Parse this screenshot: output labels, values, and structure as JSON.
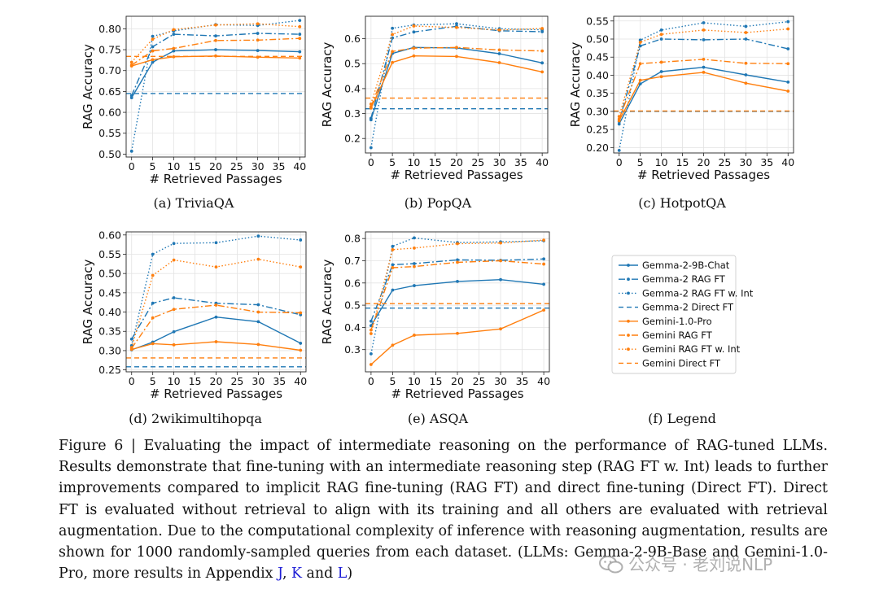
{
  "colors": {
    "blue": "#1f77b4",
    "orange": "#ff7f0e",
    "link": "#1f1fd6"
  },
  "chart_data": [
    {
      "type": "line",
      "title": "TriviaQA",
      "caption": "(a)  TriviaQA",
      "xlabel": "# Retrieved Passages",
      "ylabel": "RAG Accuracy",
      "x": [
        0,
        5,
        10,
        20,
        30,
        40
      ],
      "xticks": [
        0,
        5,
        10,
        15,
        20,
        25,
        30,
        35,
        40
      ],
      "xlim": [
        -1.3,
        41.3
      ],
      "ylim": [
        0.493,
        0.83
      ],
      "yticks": [
        "0.50",
        "0.55",
        "0.60",
        "0.65",
        "0.70",
        "0.75",
        "0.80"
      ],
      "series": [
        {
          "name": "Gemma-2-9B-Chat",
          "values": [
            0.635,
            0.72,
            0.747,
            0.75,
            0.748,
            0.745
          ]
        },
        {
          "name": "Gemma-2 RAG FT",
          "values": [
            0.64,
            0.757,
            0.787,
            0.783,
            0.789,
            0.787
          ]
        },
        {
          "name": "Gemma-2 RAG FT w. Int",
          "values": [
            0.507,
            0.782,
            0.795,
            0.81,
            0.808,
            0.82
          ]
        },
        {
          "name": "Gemma-2 Direct FT",
          "value": 0.645
        },
        {
          "name": "Gemini-1.0-Pro",
          "values": [
            0.711,
            0.726,
            0.733,
            0.735,
            0.732,
            0.73
          ]
        },
        {
          "name": "Gemini RAG FT",
          "values": [
            0.713,
            0.747,
            0.753,
            0.772,
            0.773,
            0.777
          ]
        },
        {
          "name": "Gemini RAG FT w. Int",
          "values": [
            0.72,
            0.775,
            0.798,
            0.809,
            0.812,
            0.805
          ]
        },
        {
          "name": "Gemini Direct FT",
          "value": 0.734
        }
      ]
    },
    {
      "type": "line",
      "title": "PopQA",
      "caption": "(b)  PopQA",
      "xlabel": "# Retrieved Passages",
      "ylabel": "RAG Accuracy",
      "x": [
        0,
        5,
        10,
        20,
        30,
        40
      ],
      "xticks": [
        0,
        5,
        10,
        15,
        20,
        25,
        30,
        35,
        40
      ],
      "xlim": [
        -1.3,
        41.3
      ],
      "ylim": [
        0.142,
        0.69
      ],
      "yticks": [
        "0.2",
        "0.3",
        "0.4",
        "0.5",
        "0.6"
      ],
      "series": [
        {
          "name": "Gemma-2-9B-Chat",
          "values": [
            0.275,
            0.541,
            0.565,
            0.563,
            0.54,
            0.503
          ]
        },
        {
          "name": "Gemma-2 RAG FT",
          "values": [
            0.281,
            0.603,
            0.627,
            0.65,
            0.632,
            0.628
          ]
        },
        {
          "name": "Gemma-2 RAG FT w. Int",
          "values": [
            0.163,
            0.642,
            0.655,
            0.66,
            0.64,
            0.636
          ]
        },
        {
          "name": "Gemma-2 Direct FT",
          "value": 0.319
        },
        {
          "name": "Gemini-1.0-Pro",
          "values": [
            0.322,
            0.505,
            0.531,
            0.529,
            0.504,
            0.467
          ]
        },
        {
          "name": "Gemini RAG FT",
          "values": [
            0.327,
            0.549,
            0.562,
            0.565,
            0.555,
            0.551
          ]
        },
        {
          "name": "Gemini RAG FT w. Int",
          "values": [
            0.338,
            0.617,
            0.651,
            0.645,
            0.635,
            0.641
          ]
        },
        {
          "name": "Gemini Direct FT",
          "value": 0.362
        }
      ]
    },
    {
      "type": "line",
      "title": "HotpotQA",
      "caption": "(c)  HotpotQA",
      "xlabel": "# Retrieved Passages",
      "ylabel": "RAG Accuracy",
      "x": [
        0,
        5,
        10,
        20,
        30,
        40
      ],
      "xticks": [
        0,
        5,
        10,
        15,
        20,
        25,
        30,
        35,
        40
      ],
      "xlim": [
        -1.3,
        41.3
      ],
      "ylim": [
        0.185,
        0.563
      ],
      "yticks": [
        "0.20",
        "0.25",
        "0.30",
        "0.35",
        "0.40",
        "0.45",
        "0.50",
        "0.55"
      ],
      "series": [
        {
          "name": "Gemma-2-9B-Chat",
          "values": [
            0.265,
            0.376,
            0.41,
            0.422,
            0.401,
            0.381
          ]
        },
        {
          "name": "Gemma-2 RAG FT",
          "values": [
            0.272,
            0.481,
            0.5,
            0.498,
            0.5,
            0.473
          ]
        },
        {
          "name": "Gemma-2 RAG FT w. Int",
          "values": [
            0.192,
            0.497,
            0.525,
            0.545,
            0.535,
            0.548
          ]
        },
        {
          "name": "Gemma-2 Direct FT",
          "value": 0.3
        },
        {
          "name": "Gemini-1.0-Pro",
          "values": [
            0.274,
            0.386,
            0.396,
            0.408,
            0.378,
            0.356
          ]
        },
        {
          "name": "Gemini RAG FT",
          "values": [
            0.279,
            0.432,
            0.436,
            0.444,
            0.433,
            0.432
          ]
        },
        {
          "name": "Gemini RAG FT w. Int",
          "values": [
            0.286,
            0.491,
            0.513,
            0.525,
            0.518,
            0.528
          ]
        },
        {
          "name": "Gemini Direct FT",
          "value": 0.301
        }
      ]
    },
    {
      "type": "line",
      "title": "2wikimultihopqa",
      "caption": "(d)  2wikimultihopqa",
      "xlabel": "# Retrieved Passages",
      "ylabel": "RAG Accuracy",
      "x": [
        0,
        5,
        10,
        20,
        30,
        40
      ],
      "xticks": [
        0,
        5,
        10,
        15,
        20,
        25,
        30,
        35,
        40
      ],
      "xlim": [
        -1.3,
        41.3
      ],
      "ylim": [
        0.245,
        0.608
      ],
      "yticks": [
        "0.25",
        "0.30",
        "0.35",
        "0.40",
        "0.45",
        "0.50",
        "0.55",
        "0.60"
      ],
      "series": [
        {
          "name": "Gemma-2-9B-Chat",
          "values": [
            0.302,
            0.322,
            0.349,
            0.387,
            0.375,
            0.319
          ]
        },
        {
          "name": "Gemma-2 RAG FT",
          "values": [
            0.33,
            0.423,
            0.437,
            0.423,
            0.419,
            0.393
          ]
        },
        {
          "name": "Gemma-2 RAG FT w. Int",
          "values": [
            0.313,
            0.55,
            0.578,
            0.58,
            0.597,
            0.587
          ]
        },
        {
          "name": "Gemma-2 Direct FT",
          "value": 0.258
        },
        {
          "name": "Gemini-1.0-Pro",
          "values": [
            0.303,
            0.318,
            0.315,
            0.323,
            0.316,
            0.301
          ]
        },
        {
          "name": "Gemini RAG FT",
          "values": [
            0.306,
            0.385,
            0.407,
            0.418,
            0.4,
            0.398
          ]
        },
        {
          "name": "Gemini RAG FT w. Int",
          "values": [
            0.308,
            0.495,
            0.535,
            0.517,
            0.537,
            0.517
          ]
        },
        {
          "name": "Gemini Direct FT",
          "value": 0.281
        }
      ]
    },
    {
      "type": "line",
      "title": "ASQA",
      "caption": "(e)  ASQA",
      "xlabel": "# Retrieved Passages",
      "ylabel": "RAG Accuracy",
      "x": [
        0,
        5,
        10,
        20,
        30,
        40
      ],
      "xticks": [
        0,
        5,
        10,
        15,
        20,
        25,
        30,
        35,
        40
      ],
      "xlim": [
        -1.3,
        41.3
      ],
      "ylim": [
        0.2,
        0.83
      ],
      "yticks": [
        "0.3",
        "0.4",
        "0.5",
        "0.6",
        "0.7",
        "0.8"
      ],
      "series": [
        {
          "name": "Gemma-2-9B-Chat",
          "values": [
            0.408,
            0.568,
            0.588,
            0.607,
            0.615,
            0.594
          ]
        },
        {
          "name": "Gemma-2 RAG FT",
          "values": [
            0.428,
            0.682,
            0.687,
            0.704,
            0.702,
            0.708
          ]
        },
        {
          "name": "Gemma-2 RAG FT w. Int",
          "values": [
            0.281,
            0.765,
            0.803,
            0.782,
            0.785,
            0.79
          ]
        },
        {
          "name": "Gemma-2 Direct FT",
          "value": 0.487
        },
        {
          "name": "Gemini-1.0-Pro",
          "values": [
            0.233,
            0.32,
            0.365,
            0.373,
            0.393,
            0.478
          ]
        },
        {
          "name": "Gemini RAG FT",
          "values": [
            0.388,
            0.669,
            0.674,
            0.693,
            0.7,
            0.685
          ]
        },
        {
          "name": "Gemini RAG FT w. Int",
          "values": [
            0.372,
            0.75,
            0.757,
            0.777,
            0.78,
            0.793
          ]
        },
        {
          "name": "Gemini Direct FT",
          "value": 0.507
        }
      ]
    }
  ],
  "legend": {
    "caption": "(f)  Legend",
    "items": [
      {
        "label": "Gemma-2-9B-Chat",
        "color": "#1f77b4",
        "style": "solid",
        "marker": "dot"
      },
      {
        "label": "Gemma-2 RAG FT",
        "color": "#1f77b4",
        "style": "dashdot",
        "marker": "dot"
      },
      {
        "label": "Gemma-2 RAG FT w. Int",
        "color": "#1f77b4",
        "style": "dotted",
        "marker": "dot"
      },
      {
        "label": "Gemma-2 Direct FT",
        "color": "#1f77b4",
        "style": "dashed",
        "marker": "none"
      },
      {
        "label": "Gemini-1.0-Pro",
        "color": "#ff7f0e",
        "style": "solid",
        "marker": "dot"
      },
      {
        "label": "Gemini RAG FT",
        "color": "#ff7f0e",
        "style": "dashdot",
        "marker": "dot"
      },
      {
        "label": "Gemini RAG FT w. Int",
        "color": "#ff7f0e",
        "style": "dotted",
        "marker": "dot"
      },
      {
        "label": "Gemini Direct FT",
        "color": "#ff7f0e",
        "style": "dashed",
        "marker": "none"
      }
    ]
  },
  "caption": {
    "prefix": "Figure 6 | Evaluating the impact of intermediate reasoning on the performance of RAG-tuned LLMs. Results demonstrate that fine-tuning with an intermediate reasoning step (RAG FT w. Int) leads to further improvements compared to implicit RAG fine-tuning (RAG FT) and direct fine-tuning (Direct FT). Direct FT is evaluated without retrieval to align with its training and all others are evaluated with retrieval augmentation.  Due to the computational complexity of inference with reasoning augmentation, results are shown for 1000 randomly-sampled queries from each dataset. (LLMs: Gemma-2-9B-Base and Gemini-1.0-Pro, more results in Appendix ",
    "ref_j": "J",
    "sep1": ", ",
    "ref_k": "K",
    "sep2": " and ",
    "ref_l": "L",
    "suffix": ")"
  },
  "watermark": {
    "text": "公众号 · 老刘说NLP"
  }
}
